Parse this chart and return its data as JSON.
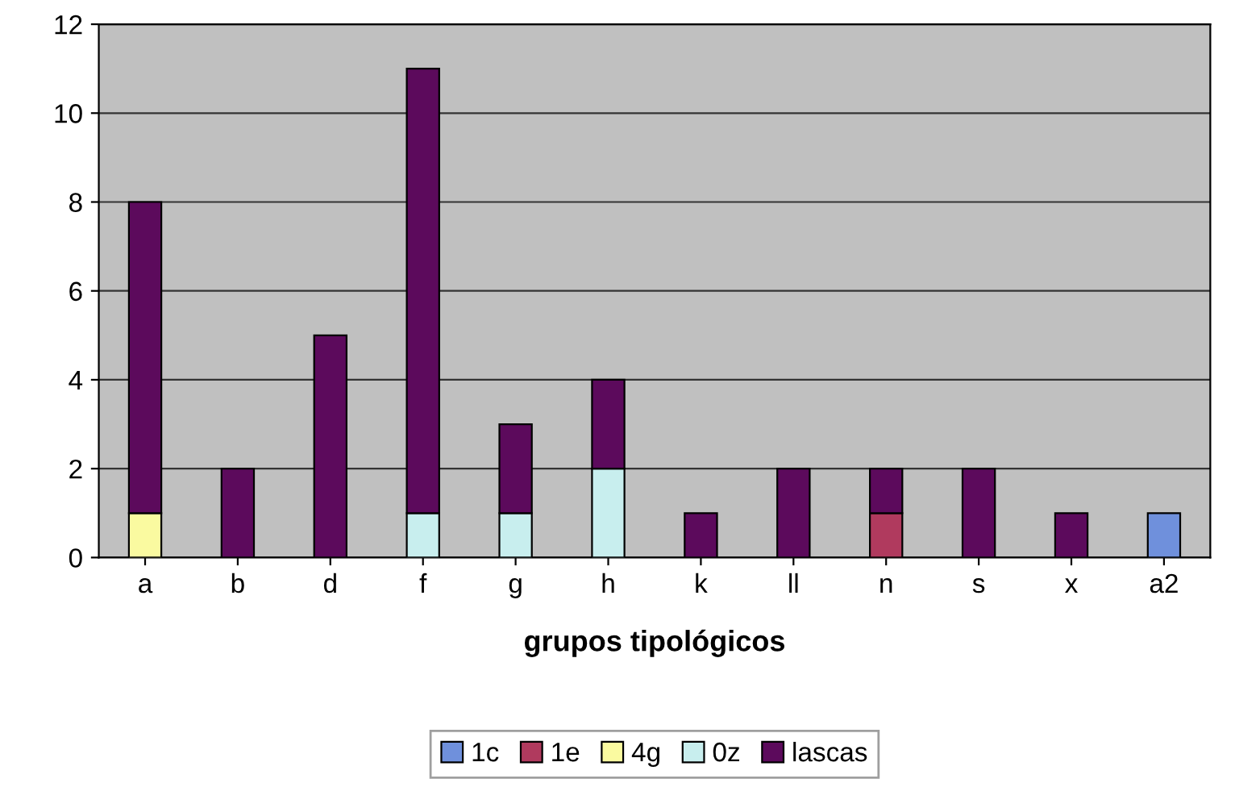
{
  "chart_data": {
    "type": "bar",
    "stacked": true,
    "xlabel": "grupos tipológicos",
    "categories": [
      "a",
      "b",
      "d",
      "f",
      "g",
      "h",
      "k",
      "ll",
      "n",
      "s",
      "x",
      "a2"
    ],
    "series": [
      {
        "name": "1c",
        "color": "#6f90dc",
        "values": [
          0,
          0,
          0,
          0,
          0,
          0,
          0,
          0,
          0,
          0,
          0,
          1
        ]
      },
      {
        "name": "1e",
        "color": "#b03a5e",
        "values": [
          0,
          0,
          0,
          0,
          0,
          0,
          0,
          0,
          1,
          0,
          0,
          0
        ]
      },
      {
        "name": "4g",
        "color": "#fafaa0",
        "values": [
          1,
          0,
          0,
          0,
          0,
          0,
          0,
          0,
          0,
          0,
          0,
          0
        ]
      },
      {
        "name": "0z",
        "color": "#c8eeee",
        "values": [
          0,
          0,
          0,
          1,
          1,
          2,
          0,
          0,
          0,
          0,
          0,
          0
        ]
      },
      {
        "name": "lascas",
        "color": "#5c0a5c",
        "values": [
          7,
          2,
          5,
          10,
          2,
          2,
          1,
          2,
          1,
          2,
          1,
          0
        ]
      }
    ],
    "ylim": [
      0,
      12
    ],
    "yticks": [
      0,
      2,
      4,
      6,
      8,
      10,
      12
    ],
    "grid": "y",
    "legend": "bottom"
  }
}
